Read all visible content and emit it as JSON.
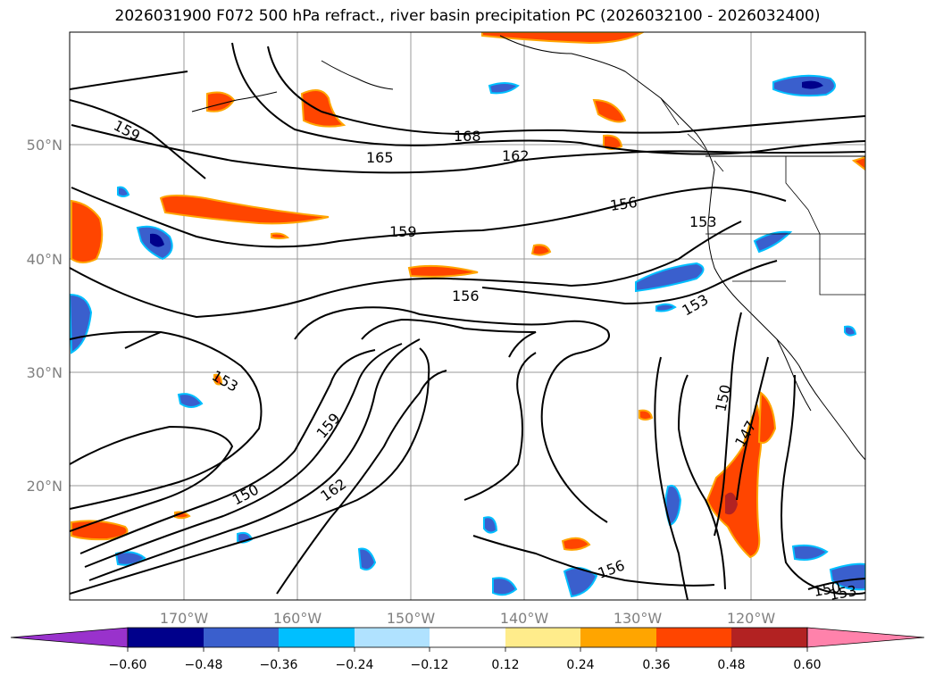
{
  "title": "2026031900 F072 500 hPa refract., river basin precipitation PC (2026032100 - 2026032400)",
  "map": {
    "lat_labels": [
      "50°N",
      "40°N",
      "30°N",
      "20°N"
    ],
    "lon_labels": [
      "170°W",
      "160°W",
      "150°W",
      "140°W",
      "130°W",
      "120°W"
    ],
    "contour_labels": [
      "159",
      "165",
      "168",
      "162",
      "156",
      "153",
      "159",
      "156",
      "153",
      "153",
      "159",
      "150",
      "162",
      "150",
      "147",
      "156",
      "150",
      "153"
    ]
  },
  "colorbar": {
    "ticks": [
      "−0.60",
      "−0.48",
      "−0.36",
      "−0.24",
      "−0.12",
      "0.12",
      "0.24",
      "0.36",
      "0.48",
      "0.60"
    ],
    "colors": [
      "#9932CC",
      "#00008B",
      "#3A5FCD",
      "#00BFFF",
      "#B0E2FF",
      "#FFFFFF",
      "#FFEC8B",
      "#FFA500",
      "#FF4500",
      "#B22222",
      "#FF82AB"
    ]
  }
}
